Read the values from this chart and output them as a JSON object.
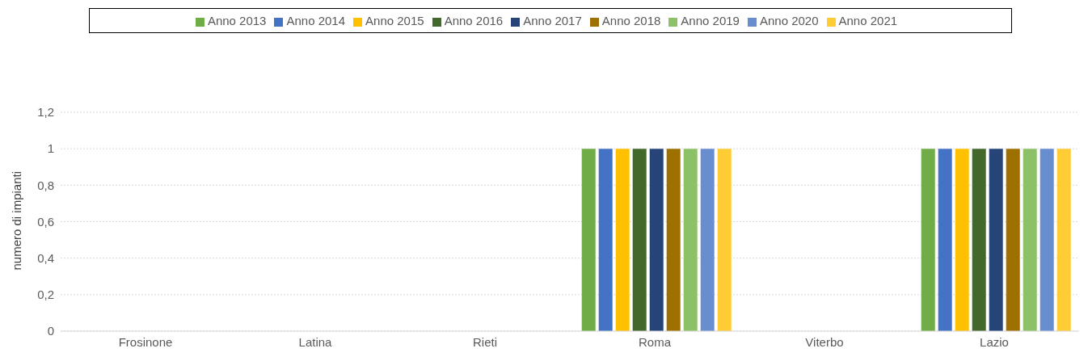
{
  "chart_data": {
    "type": "bar",
    "ylabel": "numero di impianti",
    "categories": [
      "Frosinone",
      "Latina",
      "Rieti",
      "Roma",
      "Viterbo",
      "Lazio"
    ],
    "series": [
      {
        "name": "Anno 2013",
        "color": "#70ad47",
        "values": [
          0,
          0,
          0,
          1,
          0,
          1
        ]
      },
      {
        "name": "Anno 2014",
        "color": "#4472c4",
        "values": [
          0,
          0,
          0,
          1,
          0,
          1
        ]
      },
      {
        "name": "Anno 2015",
        "color": "#ffc000",
        "values": [
          0,
          0,
          0,
          1,
          0,
          1
        ]
      },
      {
        "name": "Anno 2016",
        "color": "#43682b",
        "values": [
          0,
          0,
          0,
          1,
          0,
          1
        ]
      },
      {
        "name": "Anno 2017",
        "color": "#264478",
        "values": [
          0,
          0,
          0,
          1,
          0,
          1
        ]
      },
      {
        "name": "Anno 2018",
        "color": "#9e7000",
        "values": [
          0,
          0,
          0,
          1,
          0,
          1
        ]
      },
      {
        "name": "Anno 2019",
        "color": "#8cc168",
        "values": [
          0,
          0,
          0,
          1,
          0,
          1
        ]
      },
      {
        "name": "Anno 2020",
        "color": "#698ed0",
        "values": [
          0,
          0,
          0,
          1,
          0,
          1
        ]
      },
      {
        "name": "Anno 2021",
        "color": "#ffcd33",
        "values": [
          0,
          0,
          0,
          1,
          0,
          1
        ]
      }
    ],
    "ylim": [
      0,
      1.2
    ],
    "yticks": [
      0,
      {
        "value": 0.2,
        "label": "0,2"
      },
      {
        "value": 0.4,
        "label": "0,4"
      },
      {
        "value": 0.6,
        "label": "0,6"
      },
      {
        "value": 0.8,
        "label": "0,8"
      },
      1,
      {
        "value": 1.2,
        "label": "1,2"
      }
    ],
    "grid": "y",
    "legend": "top"
  }
}
